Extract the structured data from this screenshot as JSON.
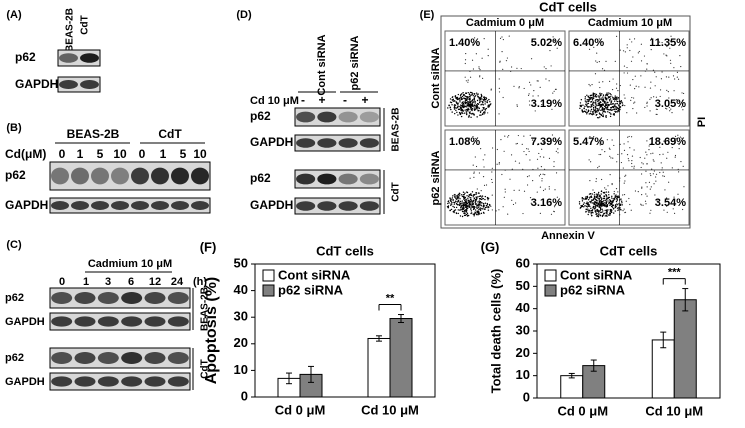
{
  "panels": {
    "A": {
      "label": "(A)",
      "columns": [
        "BEAS-2B",
        "CdT"
      ],
      "rows": [
        "p62",
        "GAPDH"
      ]
    },
    "B": {
      "label": "(B)",
      "groups": [
        "BEAS-2B",
        "CdT"
      ],
      "dose_label": "Cd(μM)",
      "doses": [
        "0",
        "1",
        "5",
        "10",
        "0",
        "1",
        "5",
        "10"
      ],
      "rows": [
        "p62",
        "GAPDH"
      ]
    },
    "C": {
      "label": "(C)",
      "treatment": "Cadmium 10 μM",
      "times": [
        "0",
        "1",
        "3",
        "6",
        "12",
        "24"
      ],
      "unit": "(h)",
      "cells": [
        "BEAS-2B",
        "CdT"
      ],
      "rows": [
        "p62",
        "GAPDH"
      ]
    },
    "D": {
      "label": "(D)",
      "columns": [
        "Cont siRNA",
        "p62 siRNA"
      ],
      "treatment": "Cd 10 μM",
      "signs": [
        "-",
        "+",
        "-",
        "+"
      ],
      "cells": [
        "BEAS-2B",
        "CdT"
      ],
      "rows": [
        "p62",
        "GAPDH"
      ]
    },
    "E": {
      "label": "(E)",
      "title": "CdT cells",
      "columns": [
        "Cadmium 0 μM",
        "Cadmium 10 μM"
      ],
      "rows": [
        "Cont siRNA",
        "p62 siRNA"
      ],
      "x_label": "Annexin V",
      "y_label": "PI",
      "quadrants": [
        [
          [
            "1.40%",
            "5.02%",
            "3.19%"
          ],
          [
            "6.40%",
            "11.35%",
            "3.05%"
          ]
        ],
        [
          [
            "1.08%",
            "7.39%",
            "3.16%"
          ],
          [
            "5.47%",
            "18.69%",
            "3.54%"
          ]
        ]
      ]
    }
  },
  "chart_data": [
    {
      "type": "bar",
      "panel_label": "(F)",
      "title": "CdT cells",
      "y_label": "Apoptosis (%)",
      "categories": [
        "Cd 0 μM",
        "Cd 10 μM"
      ],
      "series": [
        {
          "name": "Cont siRNA",
          "color": "#ffffff",
          "values": [
            7,
            22
          ],
          "errors": [
            2,
            1
          ]
        },
        {
          "name": "p62 siRNA",
          "color": "#808080",
          "values": [
            8.5,
            29.5
          ],
          "errors": [
            3,
            1.5
          ]
        }
      ],
      "ylim": [
        0,
        50
      ],
      "yticks": [
        0,
        10,
        20,
        30,
        40,
        50
      ],
      "significance": "**"
    },
    {
      "type": "bar",
      "panel_label": "(G)",
      "title": "CdT cells",
      "y_label": "Total death cells (%)",
      "categories": [
        "Cd 0 μM",
        "Cd 10 μM"
      ],
      "series": [
        {
          "name": "Cont siRNA",
          "color": "#ffffff",
          "values": [
            10,
            26
          ],
          "errors": [
            1,
            3.5
          ]
        },
        {
          "name": "p62 siRNA",
          "color": "#808080",
          "values": [
            14.5,
            44
          ],
          "errors": [
            2.5,
            5
          ]
        }
      ],
      "ylim": [
        0,
        60
      ],
      "yticks": [
        0,
        10,
        20,
        30,
        40,
        50,
        60
      ],
      "significance": "***"
    }
  ]
}
